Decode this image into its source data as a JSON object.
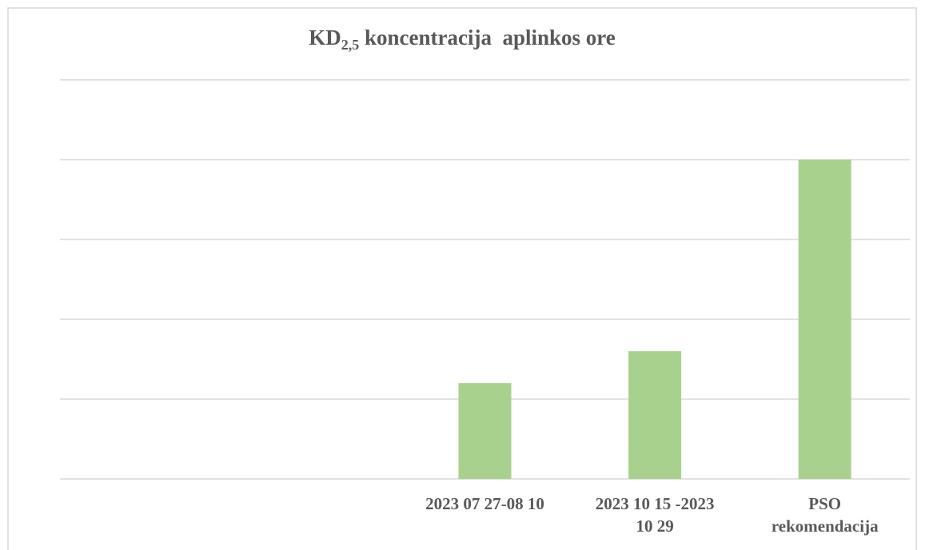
{
  "chart_data": {
    "type": "bar",
    "title": [
      "KD",
      "2,5",
      " koncentracija  aplinkos ore"
    ],
    "categories": [
      null,
      null,
      "2023 07 27-08 10",
      [
        "2023 10 15 -2023",
        "10 29"
      ],
      [
        "PSO",
        "rekomendacija"
      ]
    ],
    "values": [
      null,
      null,
      6,
      8,
      20
    ],
    "color": "#a9d18e",
    "ylim": [
      0,
      25
    ],
    "yticks": [
      0,
      5,
      10,
      15,
      20,
      25
    ],
    "grid": true
  }
}
